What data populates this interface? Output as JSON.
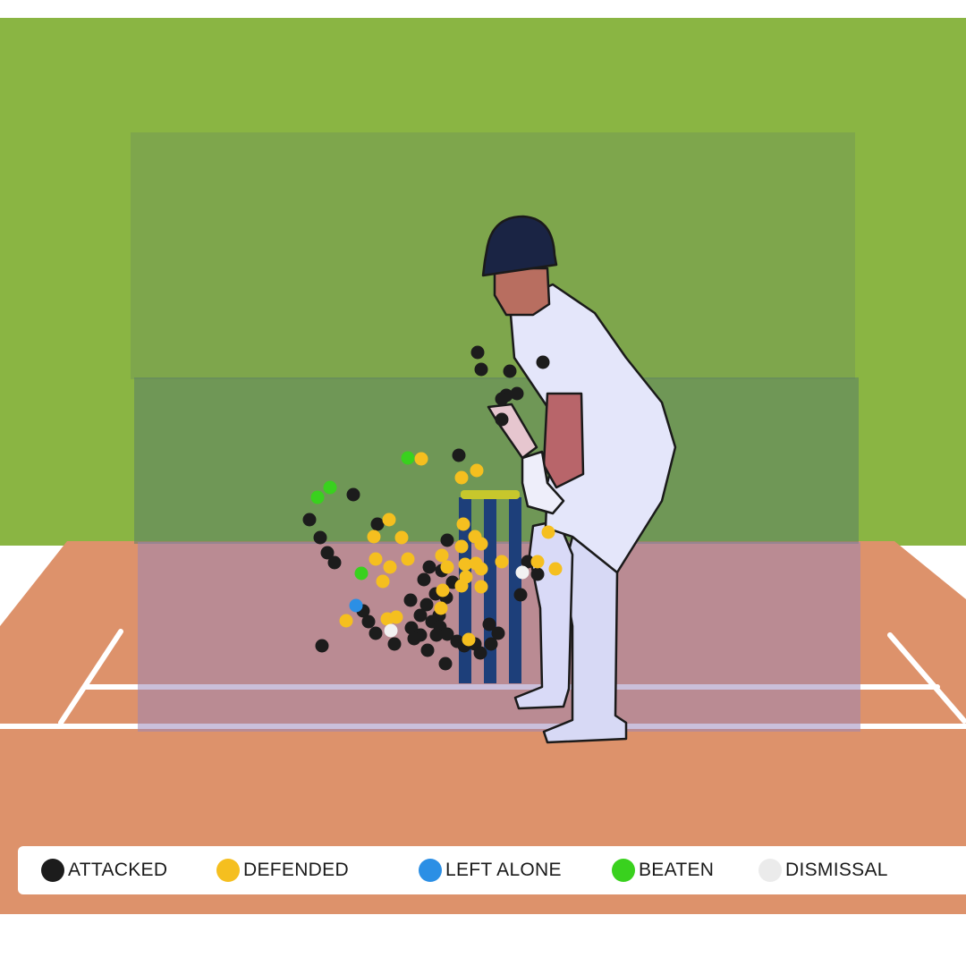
{
  "chart_data": {
    "type": "scatter",
    "title": "",
    "xlabel": "",
    "ylabel": "",
    "legend_position": "bottom",
    "series": [
      {
        "name": "ATTACKED",
        "color": "#1c1c1c",
        "points": [
          [
            534,
            394
          ],
          [
            538,
            413
          ],
          [
            570,
            415
          ],
          [
            607,
            405
          ],
          [
            578,
            440
          ],
          [
            566,
            442
          ],
          [
            561,
            446
          ],
          [
            561,
            469
          ],
          [
            513,
            509
          ],
          [
            395,
            553
          ],
          [
            346,
            581
          ],
          [
            422,
            586
          ],
          [
            358,
            601
          ],
          [
            366,
            618
          ],
          [
            374,
            629
          ],
          [
            500,
            604
          ],
          [
            480,
            634
          ],
          [
            474,
            648
          ],
          [
            494,
            638
          ],
          [
            506,
            651
          ],
          [
            487,
            664
          ],
          [
            499,
            668
          ],
          [
            459,
            671
          ],
          [
            477,
            676
          ],
          [
            491,
            688
          ],
          [
            470,
            688
          ],
          [
            483,
            695
          ],
          [
            492,
            701
          ],
          [
            460,
            702
          ],
          [
            470,
            710
          ],
          [
            488,
            710
          ],
          [
            500,
            709
          ],
          [
            511,
            717
          ],
          [
            519,
            722
          ],
          [
            531,
            720
          ],
          [
            537,
            730
          ],
          [
            547,
            698
          ],
          [
            557,
            708
          ],
          [
            549,
            720
          ],
          [
            406,
            683
          ],
          [
            412,
            695
          ],
          [
            420,
            708
          ],
          [
            441,
            720
          ],
          [
            478,
            727
          ],
          [
            498,
            742
          ],
          [
            360,
            722
          ],
          [
            582,
            665
          ],
          [
            590,
            628
          ],
          [
            601,
            642
          ],
          [
            463,
            714
          ]
        ]
      },
      {
        "name": "DEFENDED",
        "color": "#f5bf1f",
        "points": [
          [
            471,
            513
          ],
          [
            533,
            526
          ],
          [
            516,
            534
          ],
          [
            435,
            581
          ],
          [
            418,
            600
          ],
          [
            449,
            601
          ],
          [
            518,
            586
          ],
          [
            531,
            600
          ],
          [
            538,
            608
          ],
          [
            516,
            611
          ],
          [
            494,
            621
          ],
          [
            420,
            625
          ],
          [
            436,
            634
          ],
          [
            456,
            625
          ],
          [
            500,
            634
          ],
          [
            520,
            631
          ],
          [
            532,
            630
          ],
          [
            538,
            636
          ],
          [
            521,
            645
          ],
          [
            516,
            655
          ],
          [
            538,
            656
          ],
          [
            561,
            628
          ],
          [
            613,
            595
          ],
          [
            621,
            636
          ],
          [
            601,
            628
          ],
          [
            428,
            650
          ],
          [
            387,
            694
          ],
          [
            433,
            692
          ],
          [
            443,
            690
          ],
          [
            495,
            660
          ],
          [
            493,
            680
          ],
          [
            524,
            715
          ]
        ]
      },
      {
        "name": "LEFT ALONE",
        "color": "#2b8fe5",
        "points": [
          [
            398,
            677
          ]
        ]
      },
      {
        "name": "BEATEN",
        "color": "#39d11e",
        "points": [
          [
            456,
            512
          ],
          [
            369,
            545
          ],
          [
            355,
            556
          ],
          [
            404,
            641
          ]
        ]
      },
      {
        "name": "DISMISSAL",
        "color": "#f2f2f2",
        "points": [
          [
            437,
            705
          ],
          [
            584,
            640
          ]
        ]
      }
    ]
  }
}
